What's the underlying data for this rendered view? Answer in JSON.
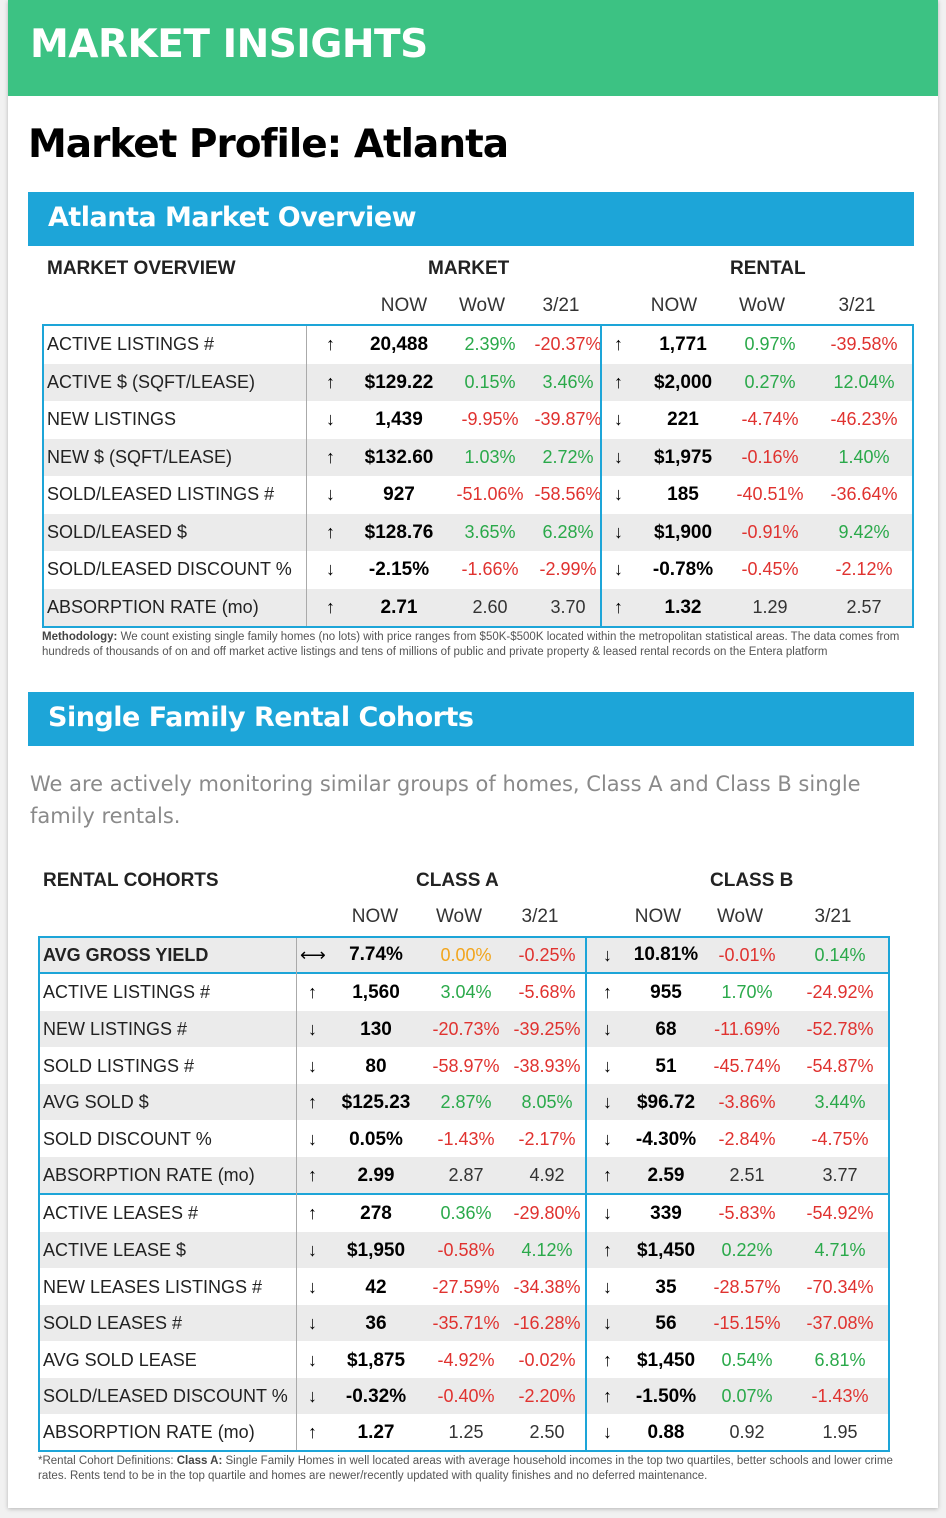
{
  "banner": "MARKET INSIGHTS",
  "page_title": "Market Profile: Atlanta",
  "overview": {
    "section_title": "Atlanta Market Overview",
    "table_title": "MARKET OVERVIEW",
    "group_market": "MARKET",
    "group_rental": "RENTAL",
    "col_now": "NOW",
    "col_wow": "WoW",
    "col_321": "3/21",
    "rows": [
      {
        "label": "ACTIVE LISTINGS #",
        "m_arrow": "↑",
        "m_now": "20,488",
        "m_wow": "2.39%",
        "m_321": "-20.37%",
        "r_arrow": "↑",
        "r_now": "1,771",
        "r_wow": "0.97%",
        "r_321": "-39.58%"
      },
      {
        "label": "ACTIVE $ (SQFT/LEASE)",
        "m_arrow": "↑",
        "m_now": "$129.22",
        "m_wow": "0.15%",
        "m_321": "3.46%",
        "r_arrow": "↑",
        "r_now": "$2,000",
        "r_wow": "0.27%",
        "r_321": "12.04%"
      },
      {
        "label": "NEW LISTINGS",
        "m_arrow": "↓",
        "m_now": "1,439",
        "m_wow": "-9.95%",
        "m_321": "-39.87%",
        "r_arrow": "↓",
        "r_now": "221",
        "r_wow": "-4.74%",
        "r_321": "-46.23%"
      },
      {
        "label": "NEW $ (SQFT/LEASE)",
        "m_arrow": "↑",
        "m_now": "$132.60",
        "m_wow": "1.03%",
        "m_321": "2.72%",
        "r_arrow": "↓",
        "r_now": "$1,975",
        "r_wow": "-0.16%",
        "r_321": "1.40%"
      },
      {
        "label": "SOLD/LEASED LISTINGS #",
        "m_arrow": "↓",
        "m_now": "927",
        "m_wow": "-51.06%",
        "m_321": "-58.56%",
        "r_arrow": "↓",
        "r_now": "185",
        "r_wow": "-40.51%",
        "r_321": "-36.64%"
      },
      {
        "label": "SOLD/LEASED $",
        "m_arrow": "↑",
        "m_now": "$128.76",
        "m_wow": "3.65%",
        "m_321": "6.28%",
        "r_arrow": "↓",
        "r_now": "$1,900",
        "r_wow": "-0.91%",
        "r_321": "9.42%"
      },
      {
        "label": "SOLD/LEASED DISCOUNT %",
        "m_arrow": "↓",
        "m_now": "-2.15%",
        "m_wow": "-1.66%",
        "m_321": "-2.99%",
        "r_arrow": "↓",
        "r_now": "-0.78%",
        "r_wow": "-0.45%",
        "r_321": "-2.12%"
      },
      {
        "label": "ABSORPTION RATE (mo)",
        "m_arrow": "↑",
        "m_now": "2.71",
        "m_wow": "2.60",
        "m_321": "3.70",
        "r_arrow": "↑",
        "r_now": "1.32",
        "r_wow": "1.29",
        "r_321": "2.57"
      }
    ],
    "methodology_label": "Methodology:",
    "methodology_text": " We count existing single family homes (no lots) with price ranges from $50K-$500K located within the metropolitan statistical areas.  The data comes from hundreds of thousands of on and off market active listings and tens of millions of public and private property & leased rental records on the Entera platform"
  },
  "cohorts": {
    "section_title": "Single Family Rental Cohorts",
    "intro": "We are actively monitoring similar groups of homes, Class A and Class B single family rentals.",
    "table_title": "RENTAL COHORTS",
    "group_a": "CLASS A",
    "group_b": "CLASS B",
    "col_now": "NOW",
    "col_wow": "WoW",
    "col_321": "3/21",
    "rows": [
      {
        "label": "AVG GROSS YIELD",
        "a_arrow": "⟷",
        "a_now": "7.74%",
        "a_wow": "0.00%",
        "a_321": "-0.25%",
        "b_arrow": "↓",
        "b_now": "10.81%",
        "b_wow": "-0.01%",
        "b_321": "0.14%"
      },
      {
        "label": "ACTIVE LISTINGS #",
        "a_arrow": "↑",
        "a_now": "1,560",
        "a_wow": "3.04%",
        "a_321": "-5.68%",
        "b_arrow": "↑",
        "b_now": "955",
        "b_wow": "1.70%",
        "b_321": "-24.92%"
      },
      {
        "label": "NEW LISTINGS #",
        "a_arrow": "↓",
        "a_now": "130",
        "a_wow": "-20.73%",
        "a_321": "-39.25%",
        "b_arrow": "↓",
        "b_now": "68",
        "b_wow": "-11.69%",
        "b_321": "-52.78%"
      },
      {
        "label": "SOLD LISTINGS #",
        "a_arrow": "↓",
        "a_now": "80",
        "a_wow": "-58.97%",
        "a_321": "-38.93%",
        "b_arrow": "↓",
        "b_now": "51",
        "b_wow": "-45.74%",
        "b_321": "-54.87%"
      },
      {
        "label": "AVG SOLD $",
        "a_arrow": "↑",
        "a_now": "$125.23",
        "a_wow": "2.87%",
        "a_321": "8.05%",
        "b_arrow": "↓",
        "b_now": "$96.72",
        "b_wow": "-3.86%",
        "b_321": "3.44%"
      },
      {
        "label": "SOLD DISCOUNT %",
        "a_arrow": "↓",
        "a_now": "0.05%",
        "a_wow": "-1.43%",
        "a_321": "-2.17%",
        "b_arrow": "↓",
        "b_now": "-4.30%",
        "b_wow": "-2.84%",
        "b_321": "-4.75%"
      },
      {
        "label": "ABSORPTION RATE (mo)",
        "a_arrow": "↑",
        "a_now": "2.99",
        "a_wow": "2.87",
        "a_321": "4.92",
        "b_arrow": "↑",
        "b_now": "2.59",
        "b_wow": "2.51",
        "b_321": "3.77"
      },
      {
        "label": "ACTIVE LEASES #",
        "a_arrow": "↑",
        "a_now": "278",
        "a_wow": "0.36%",
        "a_321": "-29.80%",
        "b_arrow": "↓",
        "b_now": "339",
        "b_wow": "-5.83%",
        "b_321": "-54.92%"
      },
      {
        "label": "ACTIVE LEASE $",
        "a_arrow": "↓",
        "a_now": "$1,950",
        "a_wow": "-0.58%",
        "a_321": "4.12%",
        "b_arrow": "↑",
        "b_now": "$1,450",
        "b_wow": "0.22%",
        "b_321": "4.71%"
      },
      {
        "label": "NEW LEASES LISTINGS #",
        "a_arrow": "↓",
        "a_now": "42",
        "a_wow": "-27.59%",
        "a_321": "-34.38%",
        "b_arrow": "↓",
        "b_now": "35",
        "b_wow": "-28.57%",
        "b_321": "-70.34%"
      },
      {
        "label": "SOLD LEASES #",
        "a_arrow": "↓",
        "a_now": "36",
        "a_wow": "-35.71%",
        "a_321": "-16.28%",
        "b_arrow": "↓",
        "b_now": "56",
        "b_wow": "-15.15%",
        "b_321": "-37.08%"
      },
      {
        "label": "AVG SOLD LEASE",
        "a_arrow": "↓",
        "a_now": "$1,875",
        "a_wow": "-4.92%",
        "a_321": "-0.02%",
        "b_arrow": "↑",
        "b_now": "$1,450",
        "b_wow": "0.54%",
        "b_321": "6.81%"
      },
      {
        "label": "SOLD/LEASED DISCOUNT %",
        "a_arrow": "↓",
        "a_now": "-0.32%",
        "a_wow": "-0.40%",
        "a_321": "-2.20%",
        "b_arrow": "↑",
        "b_now": "-1.50%",
        "b_wow": "0.07%",
        "b_321": "-1.43%"
      },
      {
        "label": "ABSORPTION RATE (mo)",
        "a_arrow": "↑",
        "a_now": "1.27",
        "a_wow": "1.25",
        "a_321": "2.50",
        "b_arrow": "↓",
        "b_now": "0.88",
        "b_wow": "0.92",
        "b_321": "1.95"
      }
    ],
    "footnote_lead": "*Rental Cohort Definitions: ",
    "footnote_label": "Class A:",
    "footnote_text": " Single Family Homes in well located areas with average household incomes in the top two quartiles,  better schools and lower crime rates. Rents tend to be in the top quartile and homes are newer/recently updated with quality finishes and no deferred maintenance."
  }
}
